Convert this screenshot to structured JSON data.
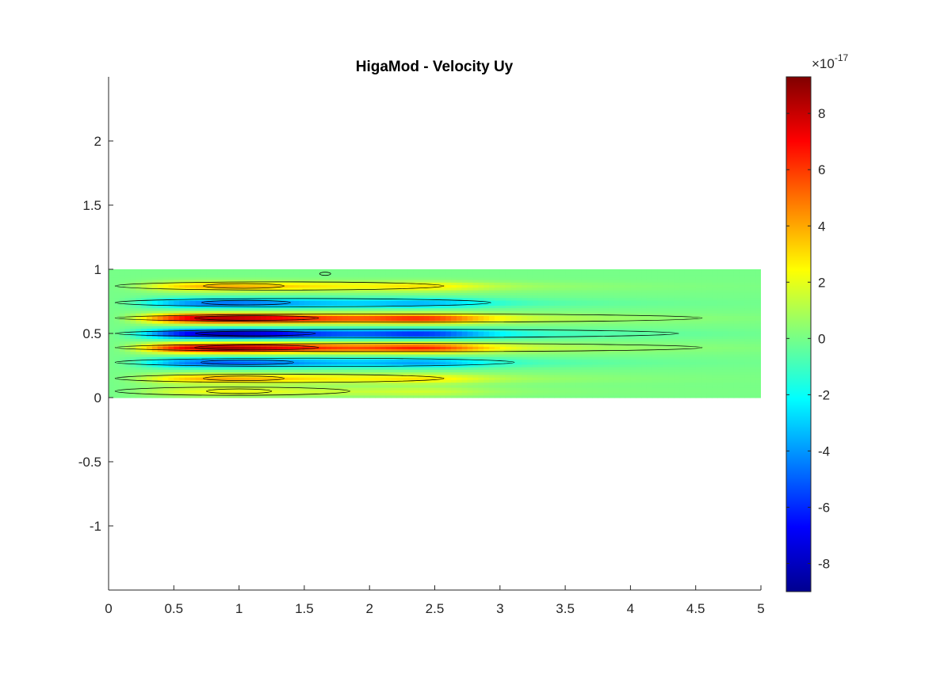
{
  "chart_data": {
    "type": "heatmap",
    "title": "HigaMod - Velocity Uy",
    "xlabel": "",
    "ylabel": "",
    "xlim": [
      0,
      5
    ],
    "ylim": [
      -1.5,
      2.5
    ],
    "x_ticks": [
      0,
      0.5,
      1,
      1.5,
      2,
      2.5,
      3,
      3.5,
      4,
      4.5,
      5
    ],
    "x_tick_labels": [
      "0",
      "0.5",
      "1",
      "1.5",
      "2",
      "2.5",
      "3",
      "3.5",
      "4",
      "4.5",
      "5"
    ],
    "y_ticks": [
      -1,
      -0.5,
      0,
      0.5,
      1,
      1.5,
      2
    ],
    "y_tick_labels": [
      "-1",
      "-0.5",
      "0",
      "0.5",
      "1",
      "1.5",
      "2"
    ],
    "domain": {
      "x": [
        0,
        5
      ],
      "y": [
        0,
        1
      ]
    },
    "colormap": "jet",
    "contour_lines": true,
    "colorbar": {
      "location": "right",
      "exponent_label": "×10",
      "exponent": "-17",
      "clim": [
        -9,
        9.3
      ],
      "ticks": [
        -8,
        -6,
        -4,
        -2,
        0,
        2,
        4,
        6,
        8
      ],
      "tick_labels": [
        "-8",
        "-6",
        "-4",
        "-2",
        "0",
        "2",
        "4",
        "6",
        "8"
      ]
    },
    "bands": [
      {
        "y": 0.05,
        "sign": 1,
        "peak": 0.25
      },
      {
        "y": 0.15,
        "sign": 1,
        "peak": 0.45
      },
      {
        "y": 0.275,
        "sign": -1,
        "peak": 0.6
      },
      {
        "y": 0.39,
        "sign": 1,
        "peak": 1.0
      },
      {
        "y": 0.5,
        "sign": -1,
        "peak": 0.95
      },
      {
        "y": 0.62,
        "sign": 1,
        "peak": 1.0
      },
      {
        "y": 0.74,
        "sign": -1,
        "peak": 0.55
      },
      {
        "y": 0.87,
        "sign": 1,
        "peak": 0.45
      }
    ]
  }
}
